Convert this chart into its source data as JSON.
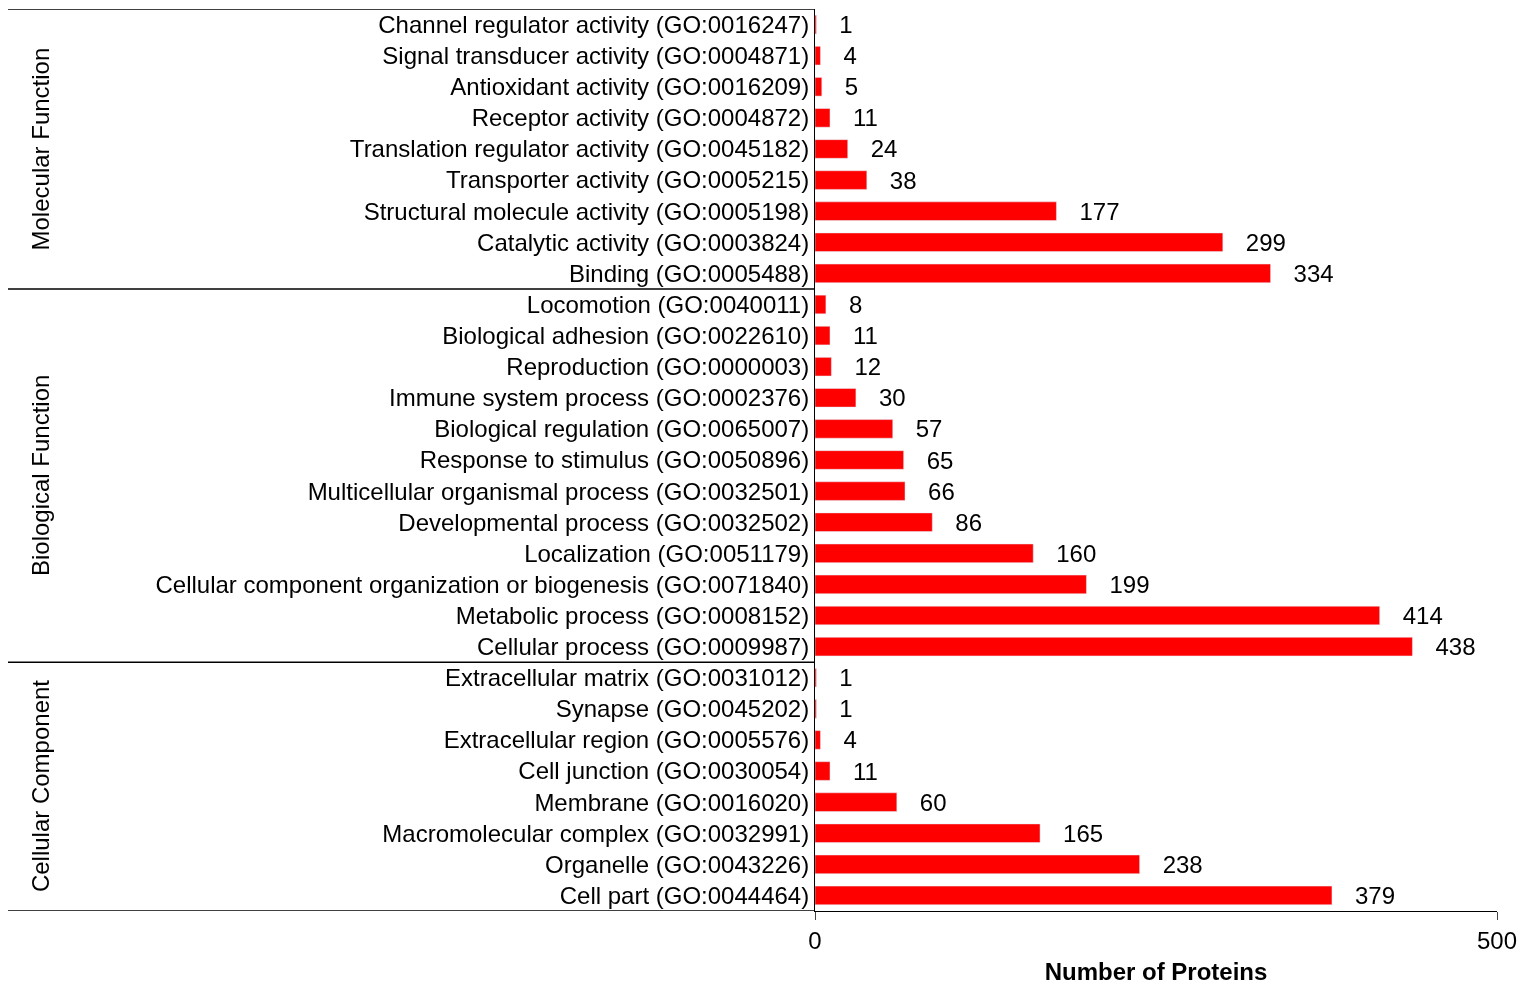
{
  "chart_data": {
    "type": "bar",
    "orientation": "horizontal",
    "xlabel": "Number of Proteins",
    "categories": [
      "Channel regulator activity (GO:0016247)",
      "Signal transducer activity (GO:0004871)",
      "Antioxidant activity (GO:0016209)",
      "Receptor activity (GO:0004872)",
      "Translation regulator activity (GO:0045182)",
      "Transporter activity (GO:0005215)",
      "Structural molecule activity (GO:0005198)",
      "Catalytic activity (GO:0003824)",
      "Binding (GO:0005488)",
      "Locomotion (GO:0040011)",
      "Biological adhesion (GO:0022610)",
      "Reproduction (GO:0000003)",
      "Immune system process (GO:0002376)",
      "Biological regulation (GO:0065007)",
      "Response to stimulus (GO:0050896)",
      "Multicellular organismal process (GO:0032501)",
      "Developmental process (GO:0032502)",
      "Localization (GO:0051179)",
      "Cellular component organization or biogenesis (GO:0071840)",
      "Metabolic process (GO:0008152)",
      "Cellular process (GO:0009987)",
      "Extracellular matrix (GO:0031012)",
      "Synapse (GO:0045202)",
      "Extracellular region (GO:0005576)",
      "Cell junction (GO:0030054)",
      "Membrane (GO:0016020)",
      "Macromolecular complex (GO:0032991)",
      "Organelle (GO:0043226)",
      "Cell part (GO:0044464)"
    ],
    "values": [
      1,
      4,
      5,
      11,
      24,
      38,
      177,
      299,
      334,
      8,
      11,
      12,
      30,
      57,
      65,
      66,
      86,
      160,
      199,
      414,
      438,
      1,
      1,
      4,
      11,
      60,
      165,
      238,
      379
    ],
    "color": "#ff0000",
    "data_labels": true,
    "xlim": [
      0,
      500
    ],
    "xticks": [
      0,
      500
    ],
    "legend": false,
    "annotations": [
      "Molecular Function",
      "Biological Function",
      "Cellular Component"
    ]
  }
}
